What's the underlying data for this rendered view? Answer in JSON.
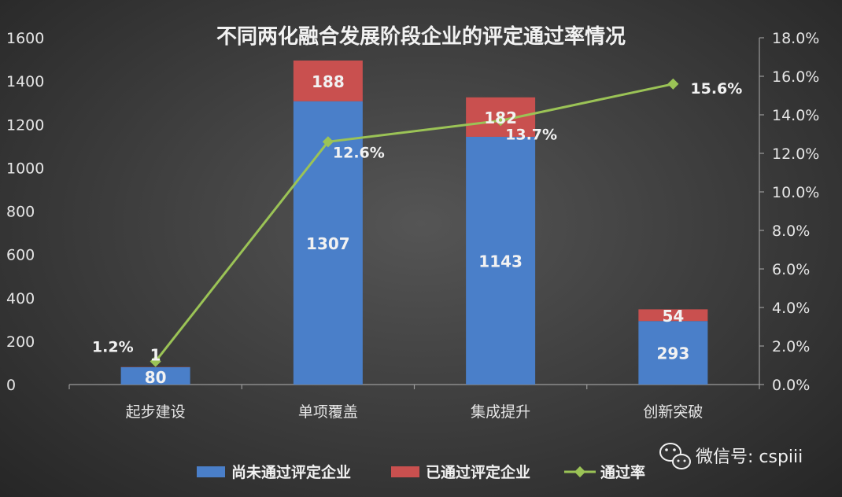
{
  "chart_data": {
    "type": "bar",
    "stacked": true,
    "title": "不同两化融合发展阶段企业的评定通过率情况",
    "categories": [
      "起步建设",
      "单项覆盖",
      "集成提升",
      "创新突破"
    ],
    "series": [
      {
        "name": "尚未通过评定企业",
        "type": "bar",
        "axis": "left",
        "color": "#4a7fc9",
        "values": [
          80,
          1307,
          1143,
          293
        ]
      },
      {
        "name": "已通过评定企业",
        "type": "bar",
        "axis": "left",
        "color": "#c9504f",
        "values": [
          1,
          188,
          182,
          54
        ]
      },
      {
        "name": "通过率",
        "type": "line",
        "axis": "right",
        "color": "#9bc356",
        "values": [
          1.2,
          12.6,
          13.7,
          15.6
        ],
        "labels": [
          "1.2%",
          "12.6%",
          "13.7%",
          "15.6%"
        ]
      }
    ],
    "ylim_left": [
      0,
      1600
    ],
    "yticks_left": [
      "0",
      "200",
      "400",
      "600",
      "800",
      "1000",
      "1200",
      "1400",
      "1600"
    ],
    "ylim_right": [
      0,
      18
    ],
    "yticks_right": [
      "0.0%",
      "2.0%",
      "4.0%",
      "6.0%",
      "8.0%",
      "10.0%",
      "12.0%",
      "14.0%",
      "16.0%",
      "18.0%"
    ],
    "grid": false,
    "legend_position": "bottom"
  },
  "watermark": {
    "text": "微信号: cspiii",
    "icon": "wechat-icon"
  }
}
